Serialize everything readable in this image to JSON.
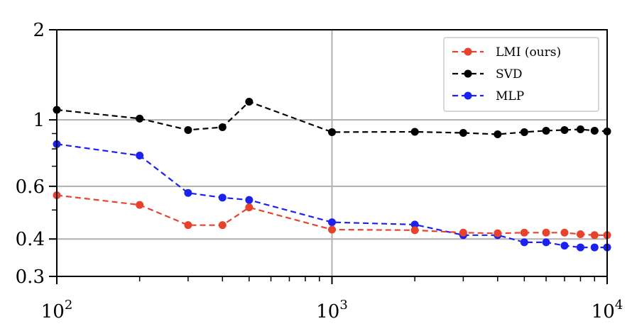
{
  "chart_data": {
    "type": "line",
    "xscale": "log",
    "yscale": "log",
    "xlim": [
      100,
      10000
    ],
    "ylim": [
      0.3,
      2
    ],
    "x_ticks": [
      {
        "value": 100,
        "base": "10",
        "exp": "2"
      },
      {
        "value": 1000,
        "base": "10",
        "exp": "3"
      },
      {
        "value": 10000,
        "base": "10",
        "exp": "4"
      }
    ],
    "y_ticks": [
      {
        "value": 0.3,
        "label": "0.3"
      },
      {
        "value": 0.4,
        "label": "0.4"
      },
      {
        "value": 0.6,
        "label": "0.6"
      },
      {
        "value": 1,
        "label": "1"
      },
      {
        "value": 2,
        "label": "2"
      }
    ],
    "grid": true,
    "legend_position": "top-right",
    "series": [
      {
        "name": "LMI (ours)",
        "color": "#e8412c",
        "x": [
          100,
          200,
          300,
          400,
          500,
          1000,
          2000,
          3000,
          4000,
          5000,
          6000,
          7000,
          8000,
          9000,
          10000
        ],
        "y": [
          0.56,
          0.52,
          0.445,
          0.445,
          0.51,
          0.43,
          0.428,
          0.42,
          0.418,
          0.42,
          0.42,
          0.42,
          0.415,
          0.412,
          0.412
        ]
      },
      {
        "name": "SVD",
        "color": "#000000",
        "x": [
          100,
          200,
          300,
          400,
          500,
          1000,
          2000,
          3000,
          4000,
          5000,
          6000,
          7000,
          8000,
          9000,
          10000
        ],
        "y": [
          1.08,
          1.01,
          0.925,
          0.945,
          1.15,
          0.91,
          0.912,
          0.905,
          0.895,
          0.91,
          0.92,
          0.925,
          0.93,
          0.92,
          0.915
        ]
      },
      {
        "name": "MLP",
        "color": "#1b22f0",
        "x": [
          100,
          200,
          300,
          400,
          500,
          1000,
          2000,
          3000,
          4000,
          5000,
          6000,
          7000,
          8000,
          9000,
          10000
        ],
        "y": [
          0.83,
          0.76,
          0.57,
          0.55,
          0.54,
          0.455,
          0.447,
          0.412,
          0.412,
          0.39,
          0.39,
          0.38,
          0.375,
          0.375,
          0.375
        ]
      }
    ]
  }
}
